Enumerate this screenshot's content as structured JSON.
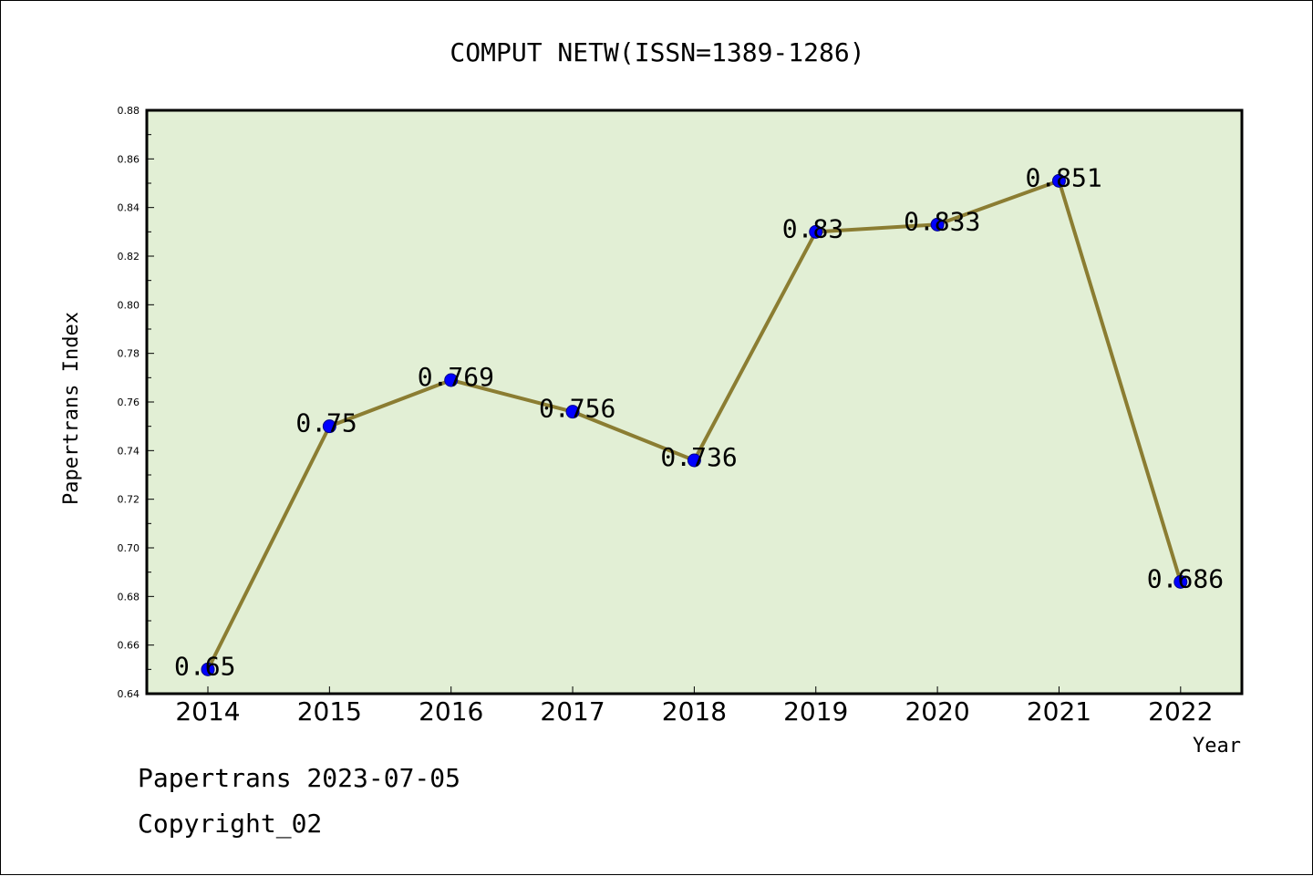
{
  "footer": {
    "line1": "Papertrans 2023-07-05",
    "line2": "Copyright_02"
  },
  "colors": {
    "plot_background": "#e2efd5",
    "line": "#8b7d32",
    "marker": "#0000ff"
  },
  "chart_data": {
    "type": "line",
    "title": "COMPUT NETW(ISSN=1389-1286)",
    "xlabel": "Year",
    "ylabel": "Papertrans Index",
    "categories": [
      "2014",
      "2015",
      "2016",
      "2017",
      "2018",
      "2019",
      "2020",
      "2021",
      "2022"
    ],
    "series": [
      {
        "values": [
          0.65,
          0.75,
          0.769,
          0.756,
          0.736,
          0.83,
          0.833,
          0.851,
          0.686
        ],
        "labels": [
          "0.65",
          "0.75",
          "0.769",
          "0.756",
          "0.736",
          "0.83",
          "0.833",
          "0.851",
          "0.686"
        ]
      }
    ],
    "ylim": [
      0.64,
      0.88
    ],
    "yticks": [
      "0.64",
      "0.66",
      "0.68",
      "0.70",
      "0.72",
      "0.74",
      "0.76",
      "0.78",
      "0.80",
      "0.82",
      "0.84",
      "0.86",
      "0.88"
    ],
    "grid": false,
    "legend": "none"
  }
}
